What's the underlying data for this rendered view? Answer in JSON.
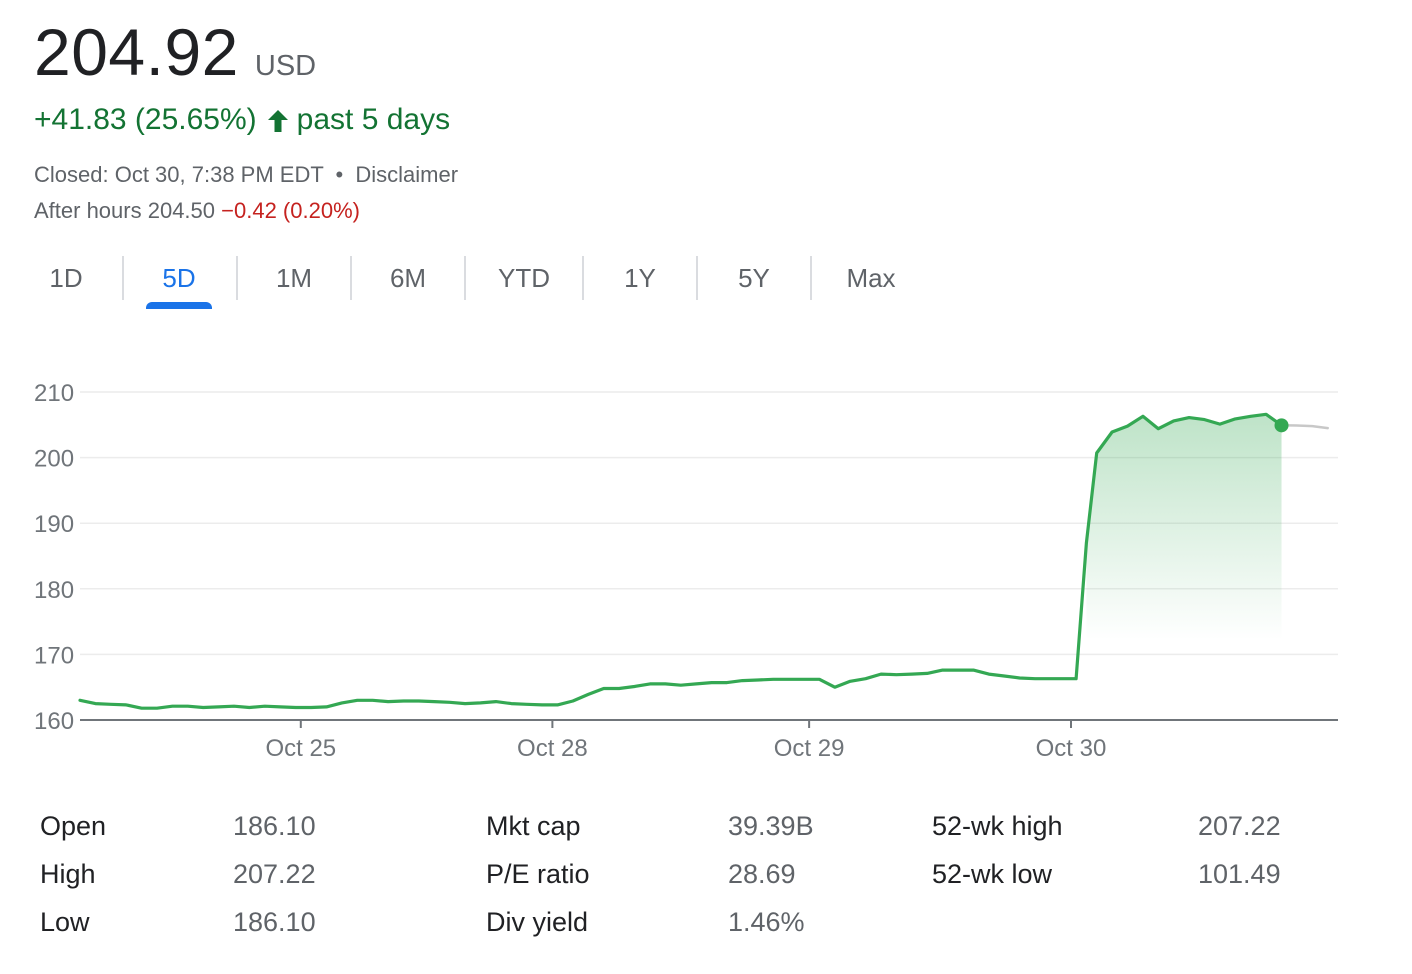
{
  "quote": {
    "price": "204.92",
    "currency": "USD",
    "change": "+41.83 (25.65%)",
    "period": "past 5 days",
    "closed_text": "Closed: Oct 30, 7:38 PM EDT",
    "separator": "•",
    "disclaimer": "Disclaimer",
    "after_hours_label": "After hours 204.50",
    "after_hours_change": "−0.42 (0.20%)",
    "colors": {
      "up": "#137333",
      "down": "#c5221f",
      "accent": "#1a73e8"
    }
  },
  "tabs": [
    {
      "label": "1D",
      "active": false
    },
    {
      "label": "5D",
      "active": true
    },
    {
      "label": "1M",
      "active": false
    },
    {
      "label": "6M",
      "active": false
    },
    {
      "label": "YTD",
      "active": false
    },
    {
      "label": "1Y",
      "active": false
    },
    {
      "label": "5Y",
      "active": false
    },
    {
      "label": "Max",
      "active": false
    }
  ],
  "icons": {
    "change_arrow": "arrow-up-icon"
  },
  "chart_data": {
    "type": "line",
    "yticks": [
      "210",
      "200",
      "190",
      "180",
      "170",
      "160"
    ],
    "ylim": [
      160,
      210
    ],
    "xlim": [
      0,
      4.9
    ],
    "xticks": [
      {
        "label": "Oct 25",
        "x": 0.86
      },
      {
        "label": "Oct 28",
        "x": 1.84
      },
      {
        "label": "Oct 29",
        "x": 2.84
      },
      {
        "label": "Oct 30",
        "x": 3.86
      }
    ],
    "grid": true,
    "series": [
      {
        "color": "#34a853",
        "points": [
          [
            0.0,
            163.0
          ],
          [
            0.06,
            162.5
          ],
          [
            0.12,
            162.4
          ],
          [
            0.18,
            162.3
          ],
          [
            0.24,
            161.8
          ],
          [
            0.3,
            161.8
          ],
          [
            0.36,
            162.1
          ],
          [
            0.42,
            162.1
          ],
          [
            0.48,
            161.9
          ],
          [
            0.54,
            162.0
          ],
          [
            0.6,
            162.1
          ],
          [
            0.66,
            161.9
          ],
          [
            0.72,
            162.1
          ],
          [
            0.78,
            162.0
          ],
          [
            0.84,
            161.9
          ],
          [
            0.9,
            161.9
          ],
          [
            0.96,
            162.0
          ],
          [
            1.02,
            162.6
          ],
          [
            1.08,
            163.0
          ],
          [
            1.14,
            163.0
          ],
          [
            1.2,
            162.8
          ],
          [
            1.26,
            162.9
          ],
          [
            1.32,
            162.9
          ],
          [
            1.38,
            162.8
          ],
          [
            1.44,
            162.7
          ],
          [
            1.5,
            162.5
          ],
          [
            1.56,
            162.6
          ],
          [
            1.62,
            162.8
          ],
          [
            1.68,
            162.5
          ],
          [
            1.74,
            162.4
          ],
          [
            1.8,
            162.3
          ],
          [
            1.86,
            162.3
          ],
          [
            1.92,
            162.9
          ],
          [
            1.98,
            163.9
          ],
          [
            2.04,
            164.8
          ],
          [
            2.1,
            164.8
          ],
          [
            2.16,
            165.1
          ],
          [
            2.22,
            165.5
          ],
          [
            2.28,
            165.5
          ],
          [
            2.34,
            165.3
          ],
          [
            2.4,
            165.5
          ],
          [
            2.46,
            165.7
          ],
          [
            2.52,
            165.7
          ],
          [
            2.58,
            166.0
          ],
          [
            2.64,
            166.1
          ],
          [
            2.7,
            166.2
          ],
          [
            2.76,
            166.2
          ],
          [
            2.82,
            166.2
          ],
          [
            2.88,
            166.2
          ],
          [
            2.94,
            165.0
          ],
          [
            3.0,
            165.9
          ],
          [
            3.06,
            166.3
          ],
          [
            3.12,
            167.0
          ],
          [
            3.18,
            166.9
          ],
          [
            3.24,
            167.0
          ],
          [
            3.3,
            167.1
          ],
          [
            3.36,
            167.6
          ],
          [
            3.42,
            167.6
          ],
          [
            3.48,
            167.6
          ],
          [
            3.54,
            167.0
          ],
          [
            3.6,
            166.7
          ],
          [
            3.66,
            166.4
          ],
          [
            3.72,
            166.3
          ],
          [
            3.78,
            166.3
          ],
          [
            3.84,
            166.3
          ],
          [
            3.88,
            166.3
          ],
          [
            3.92,
            187.0
          ],
          [
            3.96,
            200.7
          ],
          [
            4.02,
            203.9
          ],
          [
            4.08,
            204.8
          ],
          [
            4.14,
            206.3
          ],
          [
            4.2,
            204.4
          ],
          [
            4.26,
            205.6
          ],
          [
            4.32,
            206.1
          ],
          [
            4.38,
            205.8
          ],
          [
            4.44,
            205.1
          ],
          [
            4.5,
            205.9
          ],
          [
            4.56,
            206.3
          ],
          [
            4.62,
            206.6
          ],
          [
            4.68,
            204.92
          ]
        ]
      },
      {
        "name": "After hours",
        "color": "#c8c8c8",
        "points": [
          [
            4.68,
            204.92
          ],
          [
            4.74,
            204.9
          ],
          [
            4.8,
            204.8
          ],
          [
            4.86,
            204.5
          ]
        ]
      }
    ]
  },
  "stats": {
    "columns": [
      {
        "rows": [
          {
            "label": "Open",
            "value": "186.10"
          },
          {
            "label": "High",
            "value": "207.22"
          },
          {
            "label": "Low",
            "value": "186.10"
          }
        ]
      },
      {
        "rows": [
          {
            "label": "Mkt cap",
            "value": "39.39B"
          },
          {
            "label": "P/E ratio",
            "value": "28.69"
          },
          {
            "label": "Div yield",
            "value": "1.46%"
          }
        ]
      },
      {
        "rows": [
          {
            "label": "52-wk high",
            "value": "207.22"
          },
          {
            "label": "52-wk low",
            "value": "101.49"
          }
        ]
      }
    ]
  }
}
